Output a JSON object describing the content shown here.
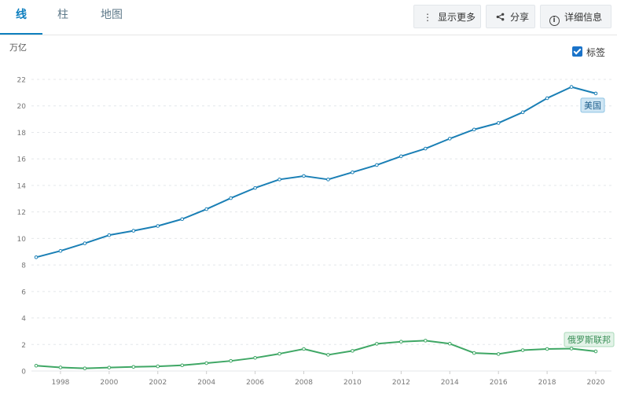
{
  "tabs": [
    {
      "label": "线",
      "active": true
    },
    {
      "label": "柱",
      "active": false
    },
    {
      "label": "地图",
      "active": false
    }
  ],
  "toolbar": {
    "more_label": "显示更多",
    "share_label": "分享",
    "detail_label": "详细信息"
  },
  "label_toggle": {
    "label": "标签",
    "checked": true
  },
  "chart_data": {
    "type": "line",
    "title": "",
    "xlabel": "",
    "ylabel": "万亿",
    "x": [
      1997,
      1998,
      1999,
      2000,
      2001,
      2002,
      2003,
      2004,
      2005,
      2006,
      2007,
      2008,
      2009,
      2010,
      2011,
      2012,
      2013,
      2014,
      2015,
      2016,
      2017,
      2018,
      2019,
      2020
    ],
    "xticks": [
      "1998",
      "2000",
      "2002",
      "2004",
      "2006",
      "2008",
      "2010",
      "2012",
      "2014",
      "2016",
      "2018",
      "2020"
    ],
    "yticks": [
      "0",
      "2",
      "4",
      "6",
      "8",
      "10",
      "12",
      "14",
      "16",
      "18",
      "20",
      "22"
    ],
    "ylim": [
      0,
      22
    ],
    "grid": true,
    "series": [
      {
        "name": "美国",
        "color": "#1a7fb5",
        "values": [
          8.58,
          9.06,
          9.63,
          10.25,
          10.58,
          10.94,
          11.46,
          12.21,
          13.04,
          13.81,
          14.45,
          14.71,
          14.45,
          14.99,
          15.54,
          16.2,
          16.78,
          17.53,
          18.22,
          18.71,
          19.52,
          20.58,
          21.43,
          20.94
        ]
      },
      {
        "name": "俄罗斯联邦",
        "color": "#3fa765",
        "values": [
          0.4,
          0.27,
          0.2,
          0.26,
          0.31,
          0.35,
          0.43,
          0.59,
          0.76,
          0.99,
          1.3,
          1.66,
          1.22,
          1.52,
          2.05,
          2.21,
          2.29,
          2.06,
          1.36,
          1.28,
          1.57,
          1.66,
          1.69,
          1.48
        ]
      }
    ]
  }
}
